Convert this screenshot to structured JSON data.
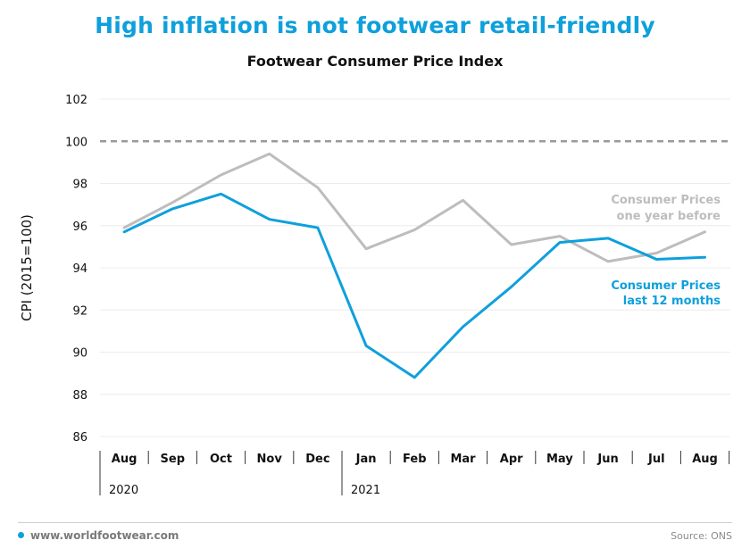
{
  "header": {
    "title": "High inflation is not footwear retail-friendly",
    "subtitle": "Footwear Consumer Price Index"
  },
  "footer": {
    "site": "www.worldfootwear.com",
    "source": "Source: ONS"
  },
  "colors": {
    "title": "#0ea0dc",
    "last12": "#0ea0dc",
    "yearBefore": "#bdbdbd",
    "reference": "#9a9a9a",
    "grid": "#ececec"
  },
  "chart_data": {
    "type": "line",
    "title": "Footwear Consumer Price Index",
    "ylabel": "CPI (2015=100)",
    "xlabel": "",
    "categories": [
      "Aug",
      "Sep",
      "Oct",
      "Nov",
      "Dec",
      "Jan",
      "Feb",
      "Mar",
      "Apr",
      "May",
      "Jun",
      "Jul",
      "Aug"
    ],
    "year_labels": [
      {
        "label": "2020",
        "start_index": 0
      },
      {
        "label": "2021",
        "start_index": 5
      }
    ],
    "yticks": [
      "86",
      "88",
      "90",
      "92",
      "94",
      "96",
      "98",
      "100",
      "102"
    ],
    "ylim": [
      86,
      102
    ],
    "reference_line": {
      "value": 100,
      "style": "dashed"
    },
    "grid": true,
    "legend": "inline-right",
    "series": [
      {
        "name": "Consumer Prices one year before",
        "label_lines": [
          "Consumer Prices",
          "one year before"
        ],
        "color": "#bdbdbd",
        "values": [
          95.9,
          97.1,
          98.4,
          99.4,
          97.8,
          94.9,
          95.8,
          97.2,
          95.1,
          95.5,
          94.3,
          94.7,
          95.7
        ]
      },
      {
        "name": "Consumer Prices last 12 months",
        "label_lines": [
          "Consumer Prices",
          "last 12 months"
        ],
        "color": "#0ea0dc",
        "values": [
          95.7,
          96.8,
          97.5,
          96.3,
          95.9,
          90.3,
          88.8,
          91.2,
          93.1,
          95.2,
          95.4,
          94.4,
          94.5
        ]
      }
    ]
  }
}
